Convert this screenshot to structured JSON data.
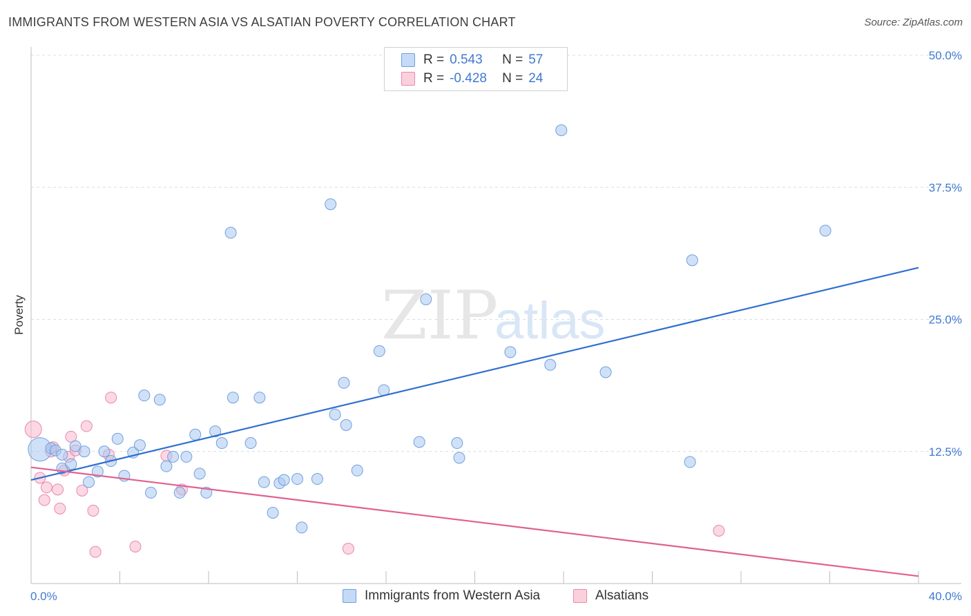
{
  "title": "IMMIGRANTS FROM WESTERN ASIA VS ALSATIAN POVERTY CORRELATION CHART",
  "source": "Source: ZipAtlas.com",
  "watermark": {
    "zip": "ZIP",
    "atlas": "atlas"
  },
  "colors": {
    "blue_fill": "#aac8f0",
    "blue_stroke": "#6f9fe0",
    "blue_line": "#2f6fd0",
    "pink_fill": "#f7b8cc",
    "pink_stroke": "#e888a8",
    "pink_line": "#e06090",
    "tick_text": "#3f7ad1",
    "grid": "#dcdcdc"
  },
  "legend": {
    "series1": {
      "r_label": "R =",
      "r_value": "0.543",
      "n_label": "N =",
      "n_value": "57"
    },
    "series2": {
      "r_label": "R =",
      "r_value": "-0.428",
      "n_label": "N =",
      "n_value": "24"
    }
  },
  "chart_data": {
    "type": "scatter",
    "title": "IMMIGRANTS FROM WESTERN ASIA VS ALSATIAN POVERTY CORRELATION CHART",
    "xlabel": "",
    "ylabel": "Poverty",
    "xlim": [
      0,
      40
    ],
    "ylim": [
      0,
      50
    ],
    "x_tick_labels": [
      "0.0%",
      "40.0%"
    ],
    "y_ticks": [
      12.5,
      25.0,
      37.5,
      50.0
    ],
    "y_tick_labels": [
      "12.5%",
      "25.0%",
      "37.5%",
      "50.0%"
    ],
    "series": [
      {
        "name": "Immigrants from Western Asia",
        "color": "blue",
        "trend": {
          "x": [
            0,
            40
          ],
          "y": [
            9.8,
            29.9
          ]
        },
        "points": [
          {
            "x": 0.4,
            "y": 12.7,
            "s": 3
          },
          {
            "x": 0.9,
            "y": 12.8,
            "s": 1
          },
          {
            "x": 1.1,
            "y": 12.6,
            "s": 1
          },
          {
            "x": 1.4,
            "y": 12.2,
            "s": 1
          },
          {
            "x": 1.4,
            "y": 10.9,
            "s": 1
          },
          {
            "x": 1.8,
            "y": 11.3,
            "s": 1
          },
          {
            "x": 2.0,
            "y": 13.0,
            "s": 1
          },
          {
            "x": 2.4,
            "y": 12.5,
            "s": 1
          },
          {
            "x": 2.6,
            "y": 9.6,
            "s": 1
          },
          {
            "x": 3.0,
            "y": 10.6,
            "s": 1
          },
          {
            "x": 3.3,
            "y": 12.5,
            "s": 1
          },
          {
            "x": 3.6,
            "y": 11.6,
            "s": 1
          },
          {
            "x": 3.9,
            "y": 13.7,
            "s": 1
          },
          {
            "x": 4.2,
            "y": 10.2,
            "s": 1
          },
          {
            "x": 4.6,
            "y": 12.4,
            "s": 1
          },
          {
            "x": 4.9,
            "y": 13.1,
            "s": 1
          },
          {
            "x": 5.1,
            "y": 17.8,
            "s": 1
          },
          {
            "x": 5.4,
            "y": 8.6,
            "s": 1
          },
          {
            "x": 5.8,
            "y": 17.4,
            "s": 1
          },
          {
            "x": 6.1,
            "y": 11.1,
            "s": 1
          },
          {
            "x": 6.4,
            "y": 12.0,
            "s": 1
          },
          {
            "x": 6.7,
            "y": 8.6,
            "s": 1
          },
          {
            "x": 7.0,
            "y": 12.0,
            "s": 1
          },
          {
            "x": 7.4,
            "y": 14.1,
            "s": 1
          },
          {
            "x": 7.6,
            "y": 10.4,
            "s": 1
          },
          {
            "x": 7.9,
            "y": 8.6,
            "s": 1
          },
          {
            "x": 8.3,
            "y": 14.4,
            "s": 1
          },
          {
            "x": 8.6,
            "y": 13.3,
            "s": 1
          },
          {
            "x": 9.0,
            "y": 33.2,
            "s": 1
          },
          {
            "x": 9.1,
            "y": 17.6,
            "s": 1
          },
          {
            "x": 9.9,
            "y": 13.3,
            "s": 1
          },
          {
            "x": 10.3,
            "y": 17.6,
            "s": 1
          },
          {
            "x": 10.5,
            "y": 9.6,
            "s": 1
          },
          {
            "x": 10.9,
            "y": 6.7,
            "s": 1
          },
          {
            "x": 11.2,
            "y": 9.5,
            "s": 1
          },
          {
            "x": 11.4,
            "y": 9.8,
            "s": 1
          },
          {
            "x": 12.0,
            "y": 9.9,
            "s": 1
          },
          {
            "x": 12.2,
            "y": 5.3,
            "s": 1
          },
          {
            "x": 12.9,
            "y": 9.9,
            "s": 1
          },
          {
            "x": 13.5,
            "y": 35.9,
            "s": 1
          },
          {
            "x": 13.7,
            "y": 16.0,
            "s": 1
          },
          {
            "x": 14.1,
            "y": 19.0,
            "s": 1
          },
          {
            "x": 14.2,
            "y": 15.0,
            "s": 1
          },
          {
            "x": 14.7,
            "y": 10.7,
            "s": 1
          },
          {
            "x": 15.7,
            "y": 22.0,
            "s": 1
          },
          {
            "x": 15.9,
            "y": 18.3,
            "s": 1
          },
          {
            "x": 17.5,
            "y": 13.4,
            "s": 1
          },
          {
            "x": 17.8,
            "y": 26.9,
            "s": 1
          },
          {
            "x": 19.2,
            "y": 13.3,
            "s": 1
          },
          {
            "x": 19.3,
            "y": 11.9,
            "s": 1
          },
          {
            "x": 21.6,
            "y": 21.9,
            "s": 1
          },
          {
            "x": 23.4,
            "y": 20.7,
            "s": 1
          },
          {
            "x": 23.9,
            "y": 42.9,
            "s": 1
          },
          {
            "x": 25.9,
            "y": 20.0,
            "s": 1
          },
          {
            "x": 29.8,
            "y": 30.6,
            "s": 1
          },
          {
            "x": 29.7,
            "y": 11.5,
            "s": 1
          },
          {
            "x": 35.8,
            "y": 33.4,
            "s": 1
          }
        ]
      },
      {
        "name": "Alsatians",
        "color": "pink",
        "trend": {
          "x": [
            0,
            40
          ],
          "y": [
            11.0,
            0.7
          ]
        },
        "points": [
          {
            "x": 0.1,
            "y": 14.6,
            "s": 2
          },
          {
            "x": 0.4,
            "y": 10.0,
            "s": 1
          },
          {
            "x": 0.6,
            "y": 7.9,
            "s": 1
          },
          {
            "x": 0.7,
            "y": 9.1,
            "s": 1
          },
          {
            "x": 0.9,
            "y": 12.5,
            "s": 1
          },
          {
            "x": 1.0,
            "y": 12.9,
            "s": 1
          },
          {
            "x": 1.2,
            "y": 8.9,
            "s": 1
          },
          {
            "x": 1.3,
            "y": 7.1,
            "s": 1
          },
          {
            "x": 1.5,
            "y": 10.7,
            "s": 1
          },
          {
            "x": 1.7,
            "y": 12.0,
            "s": 1
          },
          {
            "x": 1.8,
            "y": 13.9,
            "s": 1
          },
          {
            "x": 2.0,
            "y": 12.6,
            "s": 1
          },
          {
            "x": 2.3,
            "y": 8.8,
            "s": 1
          },
          {
            "x": 2.5,
            "y": 14.9,
            "s": 1
          },
          {
            "x": 2.8,
            "y": 6.9,
            "s": 1
          },
          {
            "x": 2.9,
            "y": 3.0,
            "s": 1
          },
          {
            "x": 3.5,
            "y": 12.2,
            "s": 1
          },
          {
            "x": 3.6,
            "y": 17.6,
            "s": 1
          },
          {
            "x": 4.7,
            "y": 3.5,
            "s": 1
          },
          {
            "x": 6.1,
            "y": 12.1,
            "s": 1
          },
          {
            "x": 6.8,
            "y": 8.9,
            "s": 1
          },
          {
            "x": 14.3,
            "y": 3.3,
            "s": 1
          },
          {
            "x": 31.0,
            "y": 5.0,
            "s": 1
          }
        ]
      }
    ]
  },
  "bottom_legend": {
    "item1": "Immigrants from Western Asia",
    "item2": "Alsatians"
  }
}
